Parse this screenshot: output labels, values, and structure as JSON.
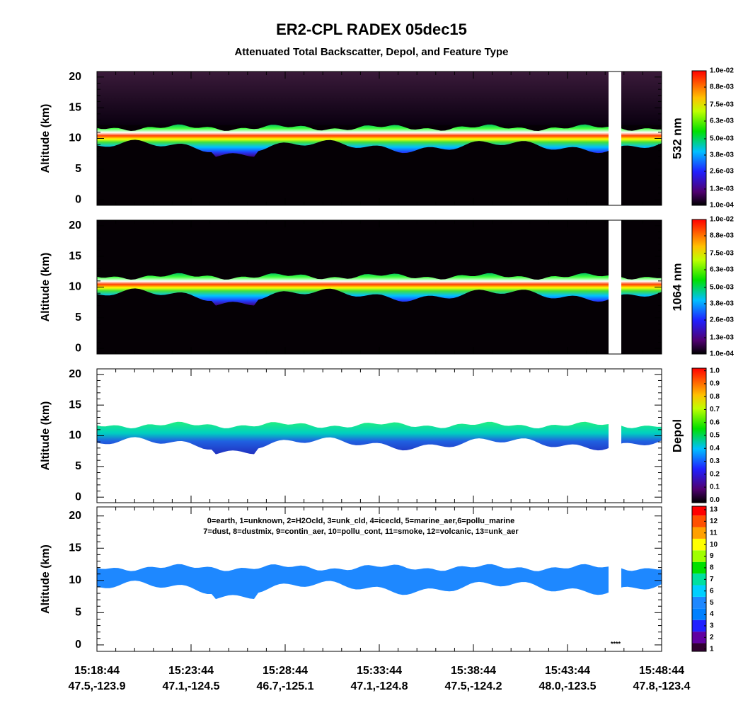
{
  "chart_data": {
    "type": "lidar_curtain",
    "title": "ER2-CPL RADEX 05dec15",
    "subtitle": "Attenuated Total Backscatter, Depol, and Feature Type",
    "x_labels": [
      {
        "time": "15:18:44",
        "position": "47.5,-123.9"
      },
      {
        "time": "15:23:44",
        "position": "47.1,-124.5"
      },
      {
        "time": "15:28:44",
        "position": "46.7,-125.1"
      },
      {
        "time": "15:33:44",
        "position": "47.1,-124.8"
      },
      {
        "time": "15:38:44",
        "position": "47.5,-124.2"
      },
      {
        "time": "15:43:44",
        "position": "48.0,-123.5"
      },
      {
        "time": "15:48:44",
        "position": "47.8,-123.4"
      }
    ],
    "panels": [
      {
        "kind": "backscatter",
        "ylabel": "Altitude (km)",
        "side_label": "532 nm",
        "ylim": [
          -0.9,
          20.9
        ],
        "yticks": [
          0,
          5,
          10,
          15,
          20
        ],
        "clim": [
          0.0001,
          0.01
        ],
        "cticks": [
          {
            "value": 0.0001,
            "label": "1.0e-04"
          },
          {
            "value": 0.0013,
            "label": "1.3e-03"
          },
          {
            "value": 0.0026,
            "label": "2.6e-03"
          },
          {
            "value": 0.0038,
            "label": "3.8e-03"
          },
          {
            "value": 0.005,
            "label": "5.0e-03"
          },
          {
            "value": 0.0063,
            "label": "6.3e-03"
          },
          {
            "value": 0.0075,
            "label": "7.5e-03"
          },
          {
            "value": 0.0088,
            "label": "8.8e-03"
          },
          {
            "value": 0.01,
            "label": "1.0e-02"
          }
        ]
      },
      {
        "kind": "backscatter",
        "ylabel": "Altitude (km)",
        "side_label": "1064 nm",
        "ylim": [
          -0.9,
          20.9
        ],
        "yticks": [
          0,
          5,
          10,
          15,
          20
        ],
        "clim": [
          0.0001,
          0.01
        ],
        "cticks": [
          {
            "value": 0.0001,
            "label": "1.0e-04"
          },
          {
            "value": 0.0013,
            "label": "1.3e-03"
          },
          {
            "value": 0.0026,
            "label": "2.6e-03"
          },
          {
            "value": 0.0038,
            "label": "3.8e-03"
          },
          {
            "value": 0.005,
            "label": "5.0e-03"
          },
          {
            "value": 0.0063,
            "label": "6.3e-03"
          },
          {
            "value": 0.0075,
            "label": "7.5e-03"
          },
          {
            "value": 0.0088,
            "label": "8.8e-03"
          },
          {
            "value": 0.01,
            "label": "1.0e-02"
          }
        ]
      },
      {
        "kind": "depol",
        "ylabel": "Altitude (km)",
        "side_label": "Depol",
        "ylim": [
          -0.9,
          20.9
        ],
        "yticks": [
          0,
          5,
          10,
          15,
          20
        ],
        "clim": [
          -0.02,
          1.02
        ],
        "cticks": [
          {
            "value": 0,
            "label": "0.0"
          },
          0.1,
          0.2,
          0.3,
          0.4,
          0.5,
          0.6,
          0.7,
          0.8,
          0.9,
          {
            "value": 1,
            "label": "1.0"
          }
        ]
      },
      {
        "kind": "feature",
        "ylabel": "Altitude (km)",
        "ylim": [
          -1,
          21.4
        ],
        "yticks": [
          0,
          5,
          10,
          15,
          20
        ],
        "clim": [
          0.8,
          13.3
        ],
        "cticks": [
          1,
          2,
          3,
          4,
          5,
          6,
          7,
          8,
          9,
          10,
          11,
          12,
          13
        ],
        "legend_lines": [
          "0=earth, 1=unknown, 2=H2Ocld, 3=unk_cld, 4=icecld, 5=marine_aer,6=pollu_marine",
          "7=dust, 8=dustmix, 9=contin_aer, 10=pollu_cont, 11=smoke, 12=volcanic, 13=unk_aer"
        ],
        "marker_text": "****"
      }
    ]
  }
}
